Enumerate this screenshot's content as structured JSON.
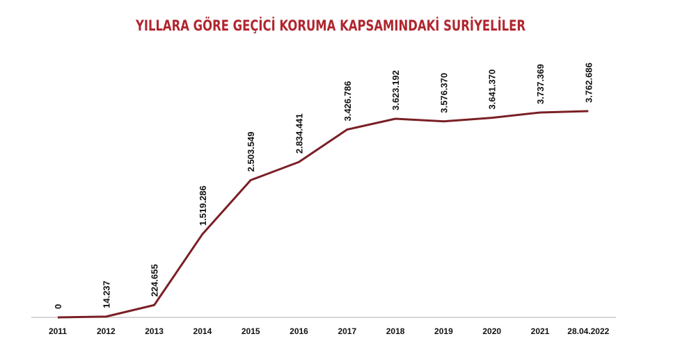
{
  "chart_data": {
    "type": "line",
    "title": "YILLARA GÖRE GEÇİCİ KORUMA KAPSAMINDAKİ SURİYELİLER",
    "categories": [
      "2011",
      "2012",
      "2013",
      "2014",
      "2015",
      "2016",
      "2017",
      "2018",
      "2019",
      "2020",
      "2021",
      "28.04.2022"
    ],
    "values": [
      0,
      14237,
      224655,
      1519286,
      2503549,
      2834441,
      3426786,
      3623192,
      3576370,
      3641370,
      3737369,
      3762686
    ],
    "value_labels": [
      "0",
      "14.237",
      "224.655",
      "1.519.286",
      "2.503.549",
      "2.834.441",
      "3.426.786",
      "3.623.192",
      "3.576.370",
      "3.641.370",
      "3.737.369",
      "3.762.686"
    ],
    "color": "#7a1f25"
  }
}
